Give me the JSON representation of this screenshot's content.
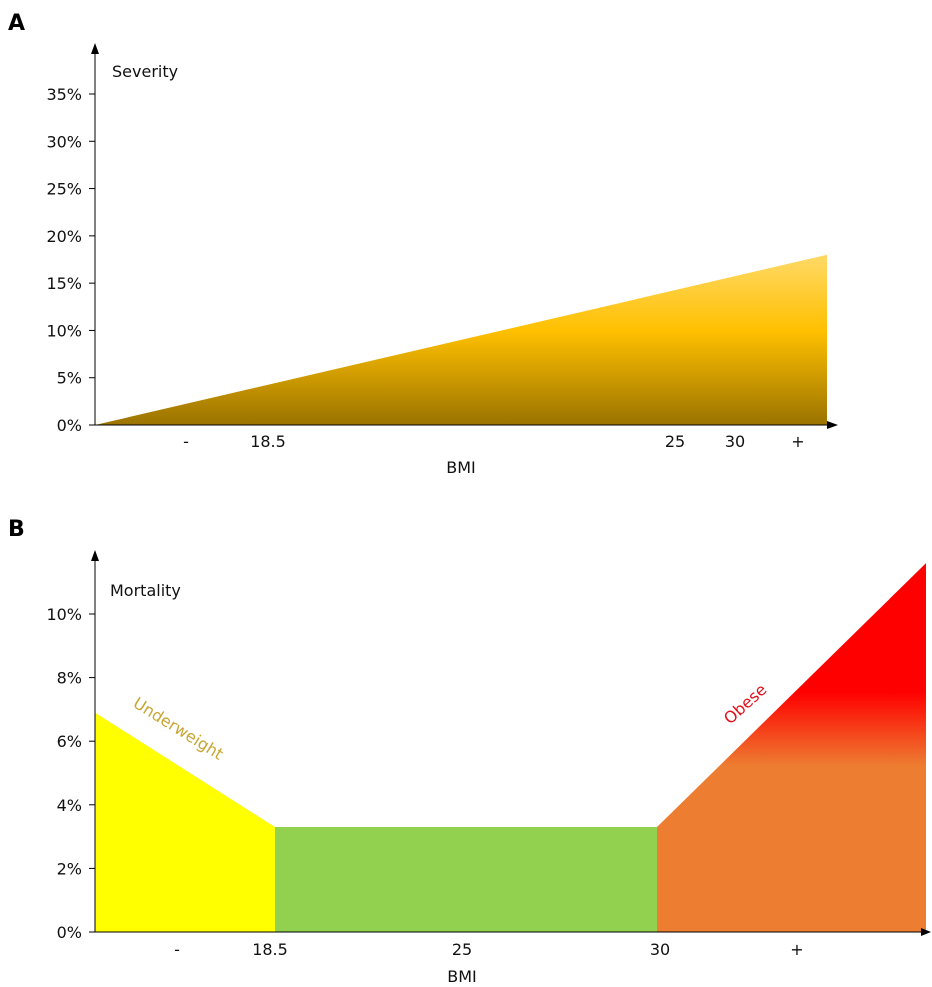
{
  "chart_data": [
    {
      "panel": "A",
      "type": "area",
      "ylabel": "Severity",
      "xlabel": "BMI",
      "x_tick_labels": [
        "-",
        "18.5",
        "25",
        "30",
        "+"
      ],
      "y_ticks": [
        "0%",
        "5%",
        "10%",
        "15%",
        "20%",
        "25%",
        "30%",
        "35%"
      ],
      "ylim": [
        0,
        35
      ],
      "series": [
        {
          "x_start": "-",
          "y_start": 0,
          "x_end": "+",
          "y_end": 18
        }
      ],
      "fill_color": "#f2b400"
    },
    {
      "panel": "B",
      "type": "area",
      "ylabel": "Mortality",
      "xlabel": "BMI",
      "x_tick_labels": [
        "-",
        "18.5",
        "25",
        "30",
        "+"
      ],
      "y_ticks": [
        "0%",
        "2%",
        "4%",
        "6%",
        "8%",
        "10%"
      ],
      "ylim": [
        0,
        10
      ],
      "zones": [
        {
          "label": "Underweight",
          "from": "-",
          "to": "18.5",
          "y_start": 6.9,
          "y_end": 3.3,
          "color": "#ffff00",
          "label_color": "#c8a633"
        },
        {
          "label": "",
          "from": "18.5",
          "to": "30",
          "y_start": 3.3,
          "y_end": 3.3,
          "color": "#92d050"
        },
        {
          "label": "Obese",
          "from": "30",
          "to": "+",
          "y_start": 3.3,
          "y_end": 11.6,
          "color": "#ff0000",
          "lower_color": "#ed7d31",
          "label_color": "#e0101a"
        }
      ]
    }
  ]
}
